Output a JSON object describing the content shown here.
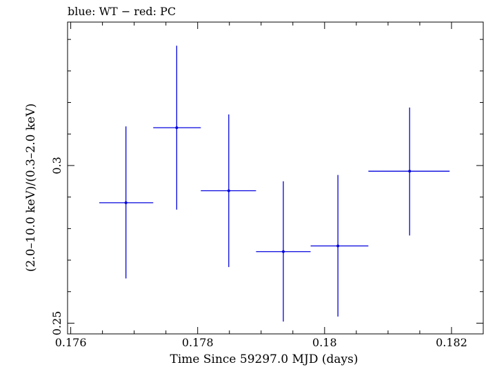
{
  "chart_data": {
    "type": "scatter",
    "title": "blue: WT − red: PC",
    "xlabel": "Time Since 59297.0 MJD (days)",
    "ylabel": "(2.0–10.0 keV)/(0.3–2.0 keV)",
    "xlim": [
      0.17595,
      0.1825
    ],
    "ylim": [
      0.2466,
      0.3455
    ],
    "xticks": [
      {
        "value": 0.176,
        "label": "0.176"
      },
      {
        "value": 0.178,
        "label": "0.178"
      },
      {
        "value": 0.18,
        "label": "0.18"
      },
      {
        "value": 0.182,
        "label": "0.182"
      }
    ],
    "yticks": [
      {
        "value": 0.25,
        "label": "0.25"
      },
      {
        "value": 0.3,
        "label": "0.3"
      }
    ],
    "series": [
      {
        "name": "WT",
        "color": "#0000dd",
        "points": [
          {
            "x": 0.17687,
            "y": 0.2882,
            "xlo": 0.17645,
            "xhi": 0.1773,
            "ylo": 0.2642,
            "yhi": 0.3124
          },
          {
            "x": 0.17767,
            "y": 0.312,
            "xlo": 0.1773,
            "xhi": 0.17805,
            "ylo": 0.286,
            "yhi": 0.338
          },
          {
            "x": 0.17849,
            "y": 0.292,
            "xlo": 0.17805,
            "xhi": 0.17892,
            "ylo": 0.2678,
            "yhi": 0.3162
          },
          {
            "x": 0.17935,
            "y": 0.2727,
            "xlo": 0.17892,
            "xhi": 0.17978,
            "ylo": 0.2505,
            "yhi": 0.295
          },
          {
            "x": 0.18021,
            "y": 0.2745,
            "xlo": 0.17978,
            "xhi": 0.18069,
            "ylo": 0.2521,
            "yhi": 0.297
          },
          {
            "x": 0.18134,
            "y": 0.2982,
            "xlo": 0.18069,
            "xhi": 0.18197,
            "ylo": 0.2778,
            "yhi": 0.3184
          }
        ]
      }
    ]
  }
}
